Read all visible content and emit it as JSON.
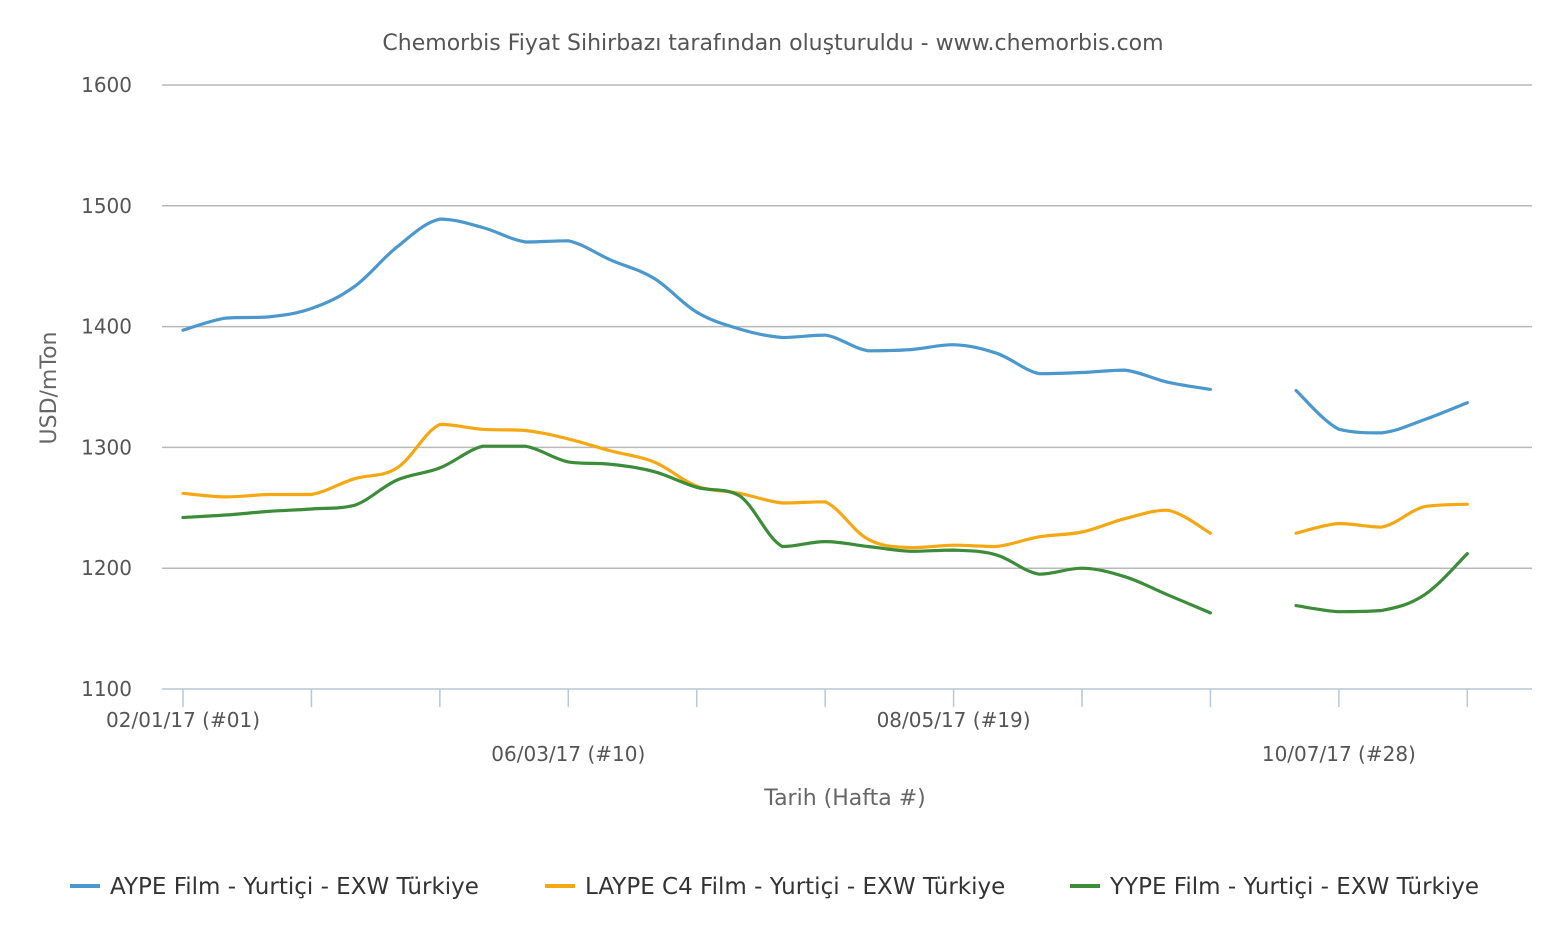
{
  "chart_data": {
    "type": "line",
    "title": "Chemorbis Fiyat Sihirbazı tarafından oluşturuldu - www.chemorbis.com",
    "xlabel": "Tarih (Hafta #)",
    "ylabel": "USD/mTon",
    "ylim": [
      1100,
      1600
    ],
    "yticks": [
      1100,
      1200,
      1300,
      1400,
      1500,
      1600
    ],
    "grid": true,
    "legend_position": "bottom",
    "x": [
      1,
      2,
      3,
      4,
      5,
      6,
      7,
      8,
      9,
      10,
      11,
      12,
      13,
      14,
      15,
      16,
      17,
      18,
      19,
      20,
      21,
      22,
      23,
      24,
      25,
      27,
      28,
      29,
      30,
      31
    ],
    "x_tick_labels": [
      {
        "x": 1,
        "label": "02/01/17 (#01)"
      },
      {
        "x": 10,
        "label": "06/03/17 (#10)"
      },
      {
        "x": 19,
        "label": "08/05/17 (#19)"
      },
      {
        "x": 28,
        "label": "10/07/17 (#28)"
      }
    ],
    "series": [
      {
        "name": "AYPE Film - Yurtiçi - EXW Türkiye",
        "color": "#4a98cd",
        "values": [
          1397,
          1407,
          1408,
          1415,
          1433,
          1466,
          1489,
          1482,
          1470,
          1471,
          1455,
          1440,
          1412,
          1398,
          1391,
          1393,
          1380,
          1381,
          1385,
          1378,
          1361,
          1362,
          1364,
          1354,
          1348,
          1347,
          1315,
          1312,
          1323,
          1337
        ]
      },
      {
        "name": "LAYPE C4 Film - Yurtiçi - EXW Türkiye",
        "color": "#f5a814",
        "values": [
          1262,
          1259,
          1261,
          1261,
          1274,
          1283,
          1319,
          1315,
          1314,
          1307,
          1297,
          1288,
          1268,
          1262,
          1254,
          1255,
          1224,
          1217,
          1219,
          1218,
          1226,
          1230,
          1241,
          1248,
          1229,
          1229,
          1237,
          1234,
          1251,
          1253
        ]
      },
      {
        "name": "YYPE Film - Yurtiçi - EXW Türkiye",
        "color": "#3c8c3a",
        "values": [
          1242,
          1244,
          1247,
          1249,
          1252,
          1273,
          1283,
          1301,
          1301,
          1288,
          1286,
          1280,
          1267,
          1260,
          1218,
          1222,
          1218,
          1214,
          1215,
          1211,
          1195,
          1200,
          1193,
          1178,
          1163,
          1169,
          1164,
          1165,
          1178,
          1212
        ]
      }
    ],
    "gap_between_x": [
      25,
      27
    ]
  }
}
